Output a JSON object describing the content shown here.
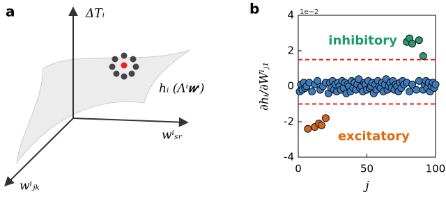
{
  "panel_a": {
    "label": "a",
    "vertical_axis": "ΔTᵢ",
    "right_axis": "wⁱₛᵣ",
    "front_axis": "wⁱⱼₖ",
    "surface": "hᵢ (Λⁱ𝒘ⁱ)"
  },
  "chart_data": {
    "type": "scatter",
    "panel_label": "b",
    "y_label": "∂hᵢ/∂Wⁱⱼ₁",
    "x_label": "j",
    "y_offset": "1e−2",
    "xlim": [
      0,
      100
    ],
    "xticks": [
      0,
      50,
      100
    ],
    "ylim": [
      -4,
      4
    ],
    "yticks": [
      -4,
      -2,
      0,
      2,
      4
    ],
    "thresholds": [
      1.5,
      -1.0
    ],
    "threshold_color": "#e8221c",
    "annotations": [
      {
        "text": "inhibitory",
        "color": "#1b9a6e",
        "x": 47,
        "y": 2.55
      },
      {
        "text": "excitatory",
        "color": "#e06a12",
        "x": 55,
        "y": -2.85
      }
    ],
    "series": [
      {
        "color": "#3b7dc0",
        "x": [
          1,
          2,
          3,
          4,
          5,
          6,
          8,
          10,
          12,
          14,
          16,
          18,
          20,
          22,
          23,
          24,
          25,
          26,
          27,
          28,
          29,
          30,
          31,
          32,
          33,
          34,
          35,
          36,
          37,
          38,
          39,
          40,
          41,
          42,
          43,
          44,
          45,
          46,
          47,
          48,
          49,
          50,
          51,
          52,
          53,
          54,
          55,
          56,
          57,
          58,
          59,
          60,
          61,
          62,
          63,
          64,
          65,
          66,
          67,
          68,
          69,
          70,
          71,
          72,
          73,
          74,
          75,
          76,
          77,
          79,
          81,
          83,
          86,
          88,
          91,
          92,
          93,
          94,
          95,
          96,
          97,
          98,
          99,
          100
        ],
        "values": [
          -0.3,
          0.1,
          -0.2,
          0.2,
          -0.1,
          0.0,
          0.2,
          -0.3,
          0.1,
          0.3,
          -0.2,
          0.0,
          0.2,
          -0.4,
          0.2,
          -0.1,
          0.3,
          -0.2,
          0.1,
          -0.3,
          0.2,
          0.0,
          -0.2,
          0.3,
          -0.1,
          0.2,
          -0.4,
          0.1,
          0.0,
          -0.3,
          0.3,
          -0.1,
          0.2,
          -0.2,
          0.1,
          0.4,
          -0.1,
          0.0,
          -0.3,
          0.2,
          0.1,
          -0.2,
          0.3,
          -0.1,
          0.0,
          0.2,
          -0.4,
          0.1,
          -0.2,
          0.3,
          0.0,
          -0.1,
          0.2,
          -0.3,
          0.1,
          0.4,
          -0.2,
          0.0,
          0.2,
          -0.1,
          0.3,
          -0.2,
          0.1,
          0.0,
          -0.3,
          0.2,
          -0.1,
          0.3,
          0.1,
          0.2,
          -0.3,
          0.1,
          -0.2,
          0.3,
          -0.2,
          0.1,
          0.3,
          -0.1,
          0.2,
          -0.3,
          0.0,
          0.2,
          -0.1,
          0.1
        ]
      },
      {
        "color": "#2a9a72",
        "x": [
          79,
          81,
          83,
          88,
          91
        ],
        "values": [
          2.5,
          2.7,
          2.4,
          2.6,
          1.7
        ]
      },
      {
        "color": "#d4651a",
        "x": [
          7,
          12,
          15,
          17,
          20
        ],
        "values": [
          -2.4,
          -2.3,
          -2.1,
          -2.2,
          -1.8
        ]
      }
    ]
  }
}
